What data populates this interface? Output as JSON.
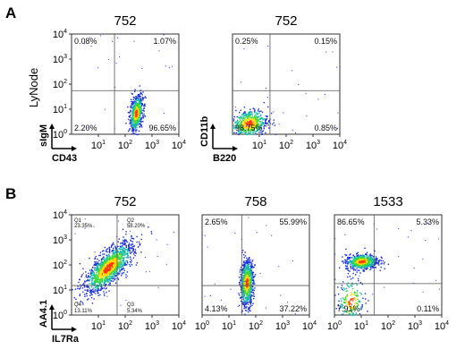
{
  "figure": {
    "panels": [
      {
        "label": "A"
      },
      {
        "label": "B"
      }
    ],
    "row_label": "LyNode"
  },
  "chart_data": [
    {
      "type": "scatter",
      "panel": "A",
      "title": "752",
      "xlabel": "CD43",
      "ylabel": "sIgM",
      "scale": "log",
      "xlim": [
        1,
        10000
      ],
      "ylim": [
        1,
        10000
      ],
      "x_ticks": [
        "10^1",
        "10^2",
        "10^3",
        "10^4"
      ],
      "y_ticks": [
        "10^0",
        "10^1",
        "10^2",
        "10^3",
        "10^4"
      ],
      "gate": {
        "x": 40,
        "y": 55
      },
      "quadrants": {
        "upper_left": "0.08%",
        "upper_right": "1.07%",
        "lower_left": "2.20%",
        "lower_right": "96.65%"
      },
      "population_center": {
        "x": 250,
        "y": 7
      }
    },
    {
      "type": "scatter",
      "panel": "A",
      "title": "752",
      "xlabel": "B220",
      "ylabel": "CD11b",
      "scale": "log",
      "xlim": [
        1,
        10000
      ],
      "ylim": [
        1,
        10000
      ],
      "x_ticks": [
        "10^1",
        "10^2",
        "10^3",
        "10^4"
      ],
      "y_ticks": [],
      "gate": {
        "x": 25,
        "y": 55
      },
      "quadrants": {
        "upper_left": "0.25%",
        "upper_right": "0.15%",
        "lower_left": "98.75%",
        "lower_right": "0.85%"
      },
      "population_center": {
        "x": 4,
        "y": 3
      }
    },
    {
      "type": "scatter",
      "panel": "B",
      "title": "752",
      "xlabel": "IL7Ra",
      "ylabel": "AA4.1",
      "scale": "log",
      "xlim": [
        1,
        10000
      ],
      "ylim": [
        1,
        10000
      ],
      "x_ticks": [
        "10^1",
        "10^2",
        "10^3",
        "10^4"
      ],
      "y_ticks": [
        "10^0",
        "10^1",
        "10^2",
        "10^3",
        "10^4"
      ],
      "gate": {
        "x": 50,
        "y": 15
      },
      "quadrant_labels": {
        "upper_left": "Q1",
        "upper_right": "Q2",
        "lower_left": "Q4",
        "lower_right": "Q3"
      },
      "quadrants": {
        "upper_left": "23.35%",
        "upper_right": "58.20%",
        "lower_left": "13.11%",
        "lower_right": "5.34%"
      },
      "population_center": {
        "x": 25,
        "y": 80
      }
    },
    {
      "type": "scatter",
      "panel": "B",
      "title": "758",
      "xlabel": "",
      "ylabel": "",
      "scale": "log",
      "xlim": [
        1,
        10000
      ],
      "ylim": [
        1,
        10000
      ],
      "x_ticks": [
        "10^0",
        "10^1",
        "10^2",
        "10^3",
        "10^4"
      ],
      "y_ticks": [],
      "gate": {
        "x": 30,
        "y": 15
      },
      "quadrants": {
        "upper_left": "2.65%",
        "upper_right": "55.99%",
        "lower_left": "4.13%",
        "lower_right": "37.22%"
      },
      "population_center": {
        "x": 45,
        "y": 20
      }
    },
    {
      "type": "scatter",
      "panel": "B",
      "title": "1533",
      "xlabel": "",
      "ylabel": "",
      "scale": "log",
      "xlim": [
        1,
        10000
      ],
      "ylim": [
        1,
        10000
      ],
      "x_ticks": [
        "10^0",
        "10^1",
        "10^2",
        "10^3",
        "10^4"
      ],
      "y_ticks": [],
      "gate": {
        "x": 30,
        "y": 18
      },
      "quadrants": {
        "upper_left": "86.65%",
        "upper_right": "5.33%",
        "lower_left": "7.91%",
        "lower_right": "0.11%"
      },
      "population_center": {
        "x": 8,
        "y": 150
      }
    }
  ]
}
